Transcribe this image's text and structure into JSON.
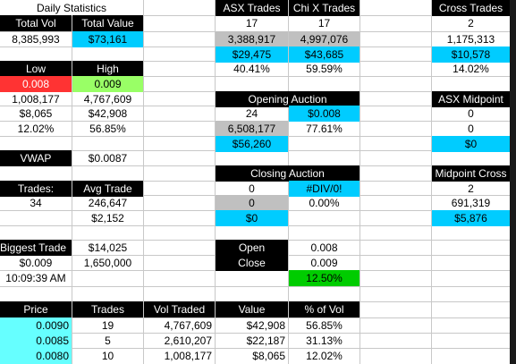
{
  "daily": {
    "title": "Daily Statistics",
    "total_vol_label": "Total  Vol",
    "total_value_label": "Total Value",
    "total_vol": "8,385,993",
    "total_value": "$73,161"
  },
  "low_high": {
    "low_label": "Low",
    "high_label": "High",
    "low": "0.008",
    "high": "0.009",
    "low_vol": "1,008,177",
    "high_vol": "4,767,609",
    "low_value": "$8,065",
    "high_value": "$42,908",
    "low_pct": "12.02%",
    "high_pct": "56.85%"
  },
  "vwap": {
    "label": "VWAP",
    "value": "$0.0087"
  },
  "trades": {
    "label": "Trades:",
    "avg_label": "Avg Trade",
    "count": "34",
    "avg_vol": "246,647",
    "avg_value": "$2,152"
  },
  "biggest": {
    "label": "Biggest Trade",
    "value": "$14,025",
    "price": "$0.009",
    "volume": "1,650,000",
    "time": "10:09:39 AM"
  },
  "asx_chix": {
    "asx_label": "ASX Trades",
    "chix_label": "Chi X Trades",
    "asx_trades": "17",
    "chix_trades": "17",
    "asx_vol": "3,388,917",
    "chix_vol": "4,997,076",
    "asx_value": "$29,475",
    "chix_value": "$43,685",
    "asx_pct": "40.41%",
    "chix_pct": "59.59%"
  },
  "opening": {
    "title": "Opening Auction",
    "trades": "24",
    "price": "$0.008",
    "volume": "6,508,177",
    "pct": "77.61%",
    "value": "$56,260"
  },
  "closing": {
    "title": "Closing Auction",
    "trades": "0",
    "price": "#DIV/0!",
    "volume": "0",
    "pct": "0.00%",
    "value": "$0"
  },
  "open_close": {
    "open_label": "Open",
    "open": "0.008",
    "close_label": "Close",
    "close": "0.009",
    "change": "12.50%"
  },
  "cross": {
    "title": "Cross Trades",
    "trades": "2",
    "volume": "1,175,313",
    "value": "$10,578",
    "pct": "14.02%"
  },
  "midpoint": {
    "title": "ASX Midpoint",
    "a": "0",
    "b": "0",
    "value": "$0"
  },
  "midcross": {
    "title": "Midpoint Cross",
    "trades": "2",
    "volume": "691,319",
    "value": "$5,876"
  },
  "price_table": {
    "headers": [
      "Price",
      "Trades",
      "Vol Traded",
      "Value",
      "% of Vol"
    ],
    "rows": [
      {
        "price": "0.0090",
        "trades": "19",
        "vol": "4,767,609",
        "value": "$42,908",
        "pct": "56.85%"
      },
      {
        "price": "0.0085",
        "trades": "5",
        "vol": "2,610,207",
        "value": "$22,187",
        "pct": "31.13%"
      },
      {
        "price": "0.0080",
        "trades": "10",
        "vol": "1,008,177",
        "value": "$8,065",
        "pct": "12.02%"
      }
    ]
  }
}
